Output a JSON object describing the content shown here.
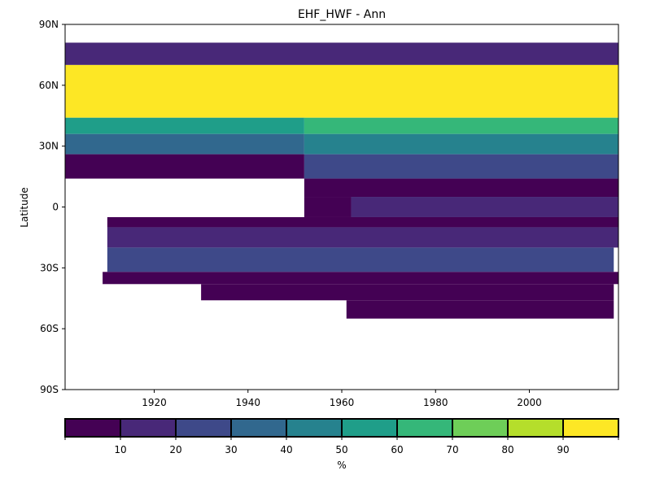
{
  "chart_data": {
    "type": "heatmap",
    "title": "EHF_HWF - Ann",
    "xlabel": "",
    "ylabel": "Latitude",
    "xlim": [
      1901,
      2019
    ],
    "ylim": [
      -90,
      90
    ],
    "x_ticks": [
      {
        "value": 1920,
        "label": "1920"
      },
      {
        "value": 1940,
        "label": "1940"
      },
      {
        "value": 1960,
        "label": "1960"
      },
      {
        "value": 1980,
        "label": "1980"
      },
      {
        "value": 2000,
        "label": "2000"
      }
    ],
    "y_ticks": [
      {
        "value": 90,
        "label": "90N"
      },
      {
        "value": 60,
        "label": "60N"
      },
      {
        "value": 30,
        "label": "30N"
      },
      {
        "value": 0,
        "label": "0"
      },
      {
        "value": -30,
        "label": "30S"
      },
      {
        "value": -60,
        "label": "60S"
      },
      {
        "value": -90,
        "label": "90S"
      }
    ],
    "colorbar": {
      "label": "%",
      "range": [
        0,
        100
      ],
      "bounds": [
        0,
        10,
        20,
        30,
        40,
        50,
        60,
        70,
        80,
        90,
        100
      ],
      "tick_labels": [
        "10",
        "20",
        "30",
        "40",
        "50",
        "60",
        "70",
        "80",
        "90"
      ],
      "colors": [
        "#440154",
        "#482878",
        "#3e4989",
        "#31688e",
        "#26828e",
        "#1f9e89",
        "#35b779",
        "#6ece58",
        "#b5de2b",
        "#fde725"
      ]
    },
    "bands": [
      {
        "x0": 1901,
        "x1": 2019,
        "y0": 70,
        "y1": 81,
        "value": 12
      },
      {
        "x0": 1901,
        "x1": 2019,
        "y0": 44,
        "y1": 70,
        "value": 95
      },
      {
        "x0": 1901,
        "x1": 1952,
        "y0": 36,
        "y1": 44,
        "value": 55
      },
      {
        "x0": 1952,
        "x1": 2019,
        "y0": 36,
        "y1": 44,
        "value": 68
      },
      {
        "x0": 1901,
        "x1": 1952,
        "y0": 26,
        "y1": 36,
        "value": 32
      },
      {
        "x0": 1952,
        "x1": 2019,
        "y0": 26,
        "y1": 36,
        "value": 42
      },
      {
        "x0": 1901,
        "x1": 1952,
        "y0": 14,
        "y1": 26,
        "value": 5
      },
      {
        "x0": 1952,
        "x1": 2019,
        "y0": 14,
        "y1": 26,
        "value": 22
      },
      {
        "x0": 1952,
        "x1": 2019,
        "y0": 5,
        "y1": 14,
        "value": 8
      },
      {
        "x0": 1952,
        "x1": 1962,
        "y0": -5,
        "y1": 5,
        "value": 5
      },
      {
        "x0": 1962,
        "x1": 2019,
        "y0": -5,
        "y1": 5,
        "value": 15
      },
      {
        "x0": 1910,
        "x1": 2019,
        "y0": -10,
        "y1": -5,
        "value": 5
      },
      {
        "x0": 1910,
        "x1": 2019,
        "y0": -20,
        "y1": -10,
        "value": 15
      },
      {
        "x0": 1910,
        "x1": 2018,
        "y0": -32,
        "y1": -20,
        "value": 25
      },
      {
        "x0": 1909,
        "x1": 2019,
        "y0": -38,
        "y1": -32,
        "value": 5
      },
      {
        "x0": 1930,
        "x1": 2018,
        "y0": -46,
        "y1": -38,
        "value": 5
      },
      {
        "x0": 1961,
        "x1": 2018,
        "y0": -55,
        "y1": -46,
        "value": 5
      }
    ]
  }
}
